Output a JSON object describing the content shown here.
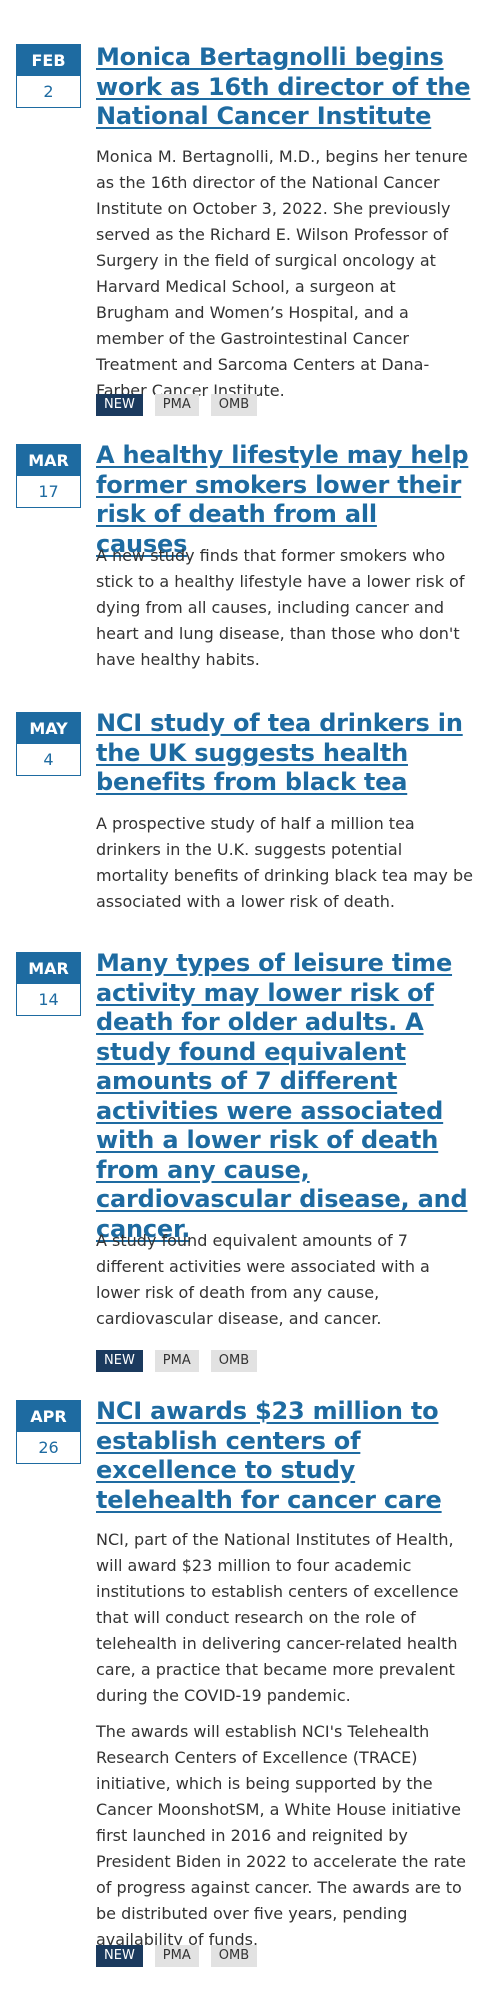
{
  "articles": [
    {
      "month": "FEB",
      "day": "2",
      "title": "Monica Bertagnolli begins work as 16th director of the National Cancer Institute",
      "paragraphs": [
        "Monica M. Bertagnolli, M.D., begins her tenure as the 16th director of the National Cancer Institute on October 3, 2022. She previously served as the Richard E. Wilson Professor of Surgery in the field of surgical oncology at Harvard Medical School, a surgeon at Brugham and Women’s Hospital, and a member of the Gastrointestinal Cancer Treatment and Sarcoma Centers at Dana-Farber Cancer Institute."
      ],
      "tags": [
        "NEW",
        "PMA",
        "OMB"
      ]
    },
    {
      "month": "MAR",
      "day": "17",
      "title": "A healthy lifestyle may help former smokers lower their risk of death from all causes",
      "paragraphs": [
        "A new study finds that former smokers who stick to a healthy lifestyle have a lower risk of dying from all causes, including cancer and heart and lung disease, than those who don't have healthy habits."
      ],
      "tags": []
    },
    {
      "month": "MAY",
      "day": "4",
      "title": "NCI study of tea drinkers in the UK suggests health benefits from black tea",
      "paragraphs": [
        "A prospective study of half a million tea drinkers in the U.K. suggests potential mortality benefits of drinking black tea may be associated with a lower risk of death."
      ],
      "tags": []
    },
    {
      "month": "MAR",
      "day": "14",
      "title": "Many types of leisure time activity may lower risk of death for older adults. A study found equivalent amounts of 7 different activities were associated with a lower risk of death from any cause, cardiovascular disease, and cancer.",
      "paragraphs": [
        "A study found equivalent amounts of 7 different activities were associated with a lower risk of death from any cause, cardiovascular disease, and cancer."
      ],
      "tags": [
        "NEW",
        "PMA",
        "OMB"
      ]
    },
    {
      "month": "APR",
      "day": "26",
      "title": "NCI awards $23 million to establish centers of excellence to study telehealth for cancer care",
      "paragraphs": [
        "NCI, part of the National Institutes of Health, will award $23 million to four academic institutions to establish centers of excellence that will conduct research on the role of telehealth in delivering cancer-related health care, a practice that became more prevalent during the COVID-19 pandemic.",
        "The awards will establish NCI's Telehealth Research Centers of Excellence (TRACE) initiative, which is being supported by the Cancer MoonshotSM, a White House initiative first launched in 2016 and reignited by President Biden in 2022 to accelerate the rate of progress against cancer. The awards are to be distributed over five years, pending availability of funds."
      ],
      "tags": [
        "NEW",
        "PMA",
        "OMB"
      ]
    }
  ]
}
